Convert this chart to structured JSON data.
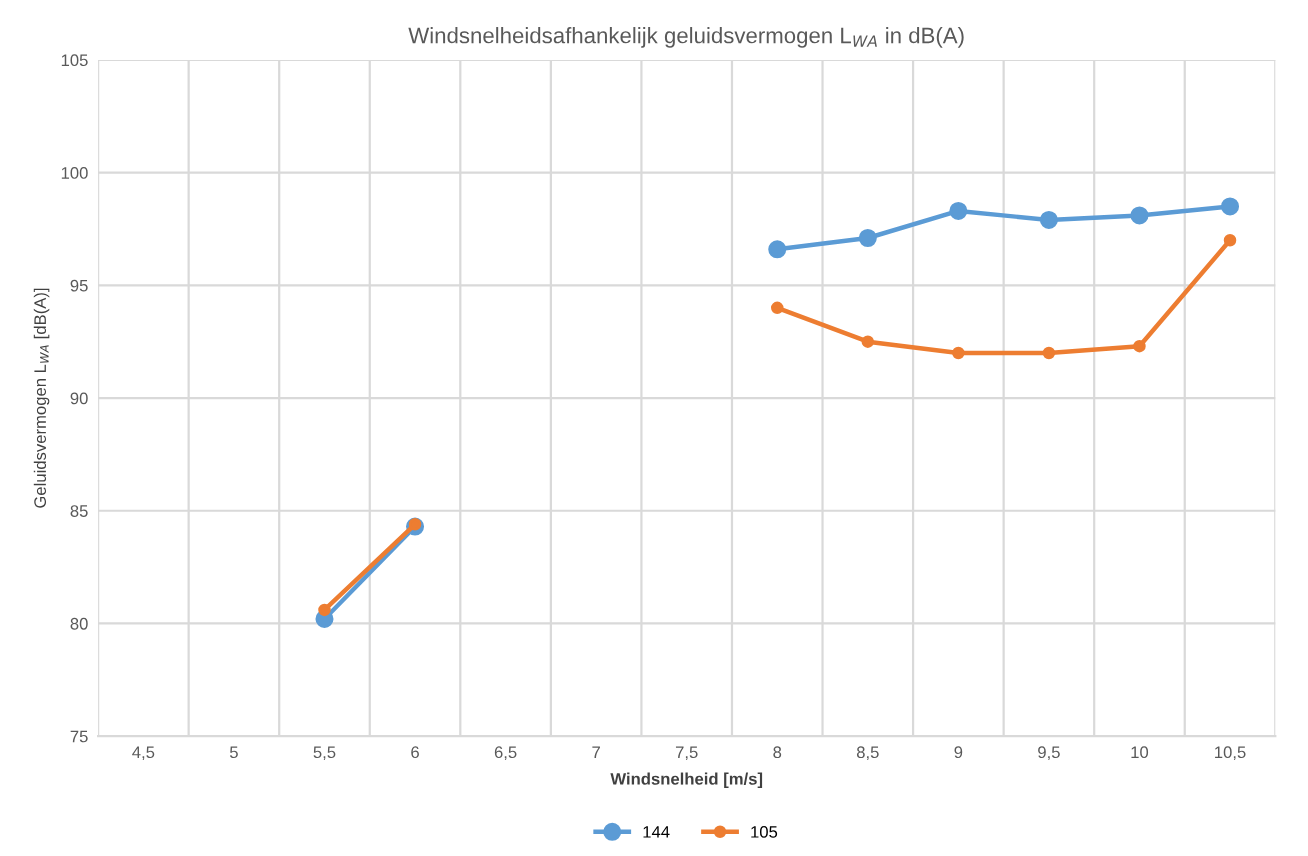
{
  "chart_data": {
    "type": "line",
    "title": "Windsnelheidsafhankelijk geluidsvermogen L$_{WA}$ in dB(A)",
    "xlabel": "Windsnelheid [m/s]",
    "ylabel": "Geluidsvermogen L$_{WA}$ [dB(A)]",
    "categories": [
      "4,5",
      "5",
      "5,5",
      "6",
      "6,5",
      "7",
      "7,5",
      "8",
      "8,5",
      "9",
      "9,5",
      "10",
      "10,5"
    ],
    "series": [
      {
        "name": "144",
        "color": "#5b9bd5",
        "values": [
          null,
          null,
          80.2,
          84.3,
          null,
          null,
          null,
          96.6,
          97.1,
          98.3,
          97.9,
          98.1,
          98.5
        ]
      },
      {
        "name": "105",
        "color": "#ed7d31",
        "values": [
          null,
          null,
          80.6,
          84.4,
          null,
          null,
          null,
          94.0,
          92.5,
          92.0,
          92.0,
          92.3,
          97.0
        ]
      }
    ],
    "ylim": [
      75,
      105
    ],
    "yticks": [
      75,
      80,
      85,
      90,
      95,
      100,
      105
    ],
    "grid": true,
    "legend": "bottom",
    "marker": "circle",
    "line_style": "solid"
  }
}
